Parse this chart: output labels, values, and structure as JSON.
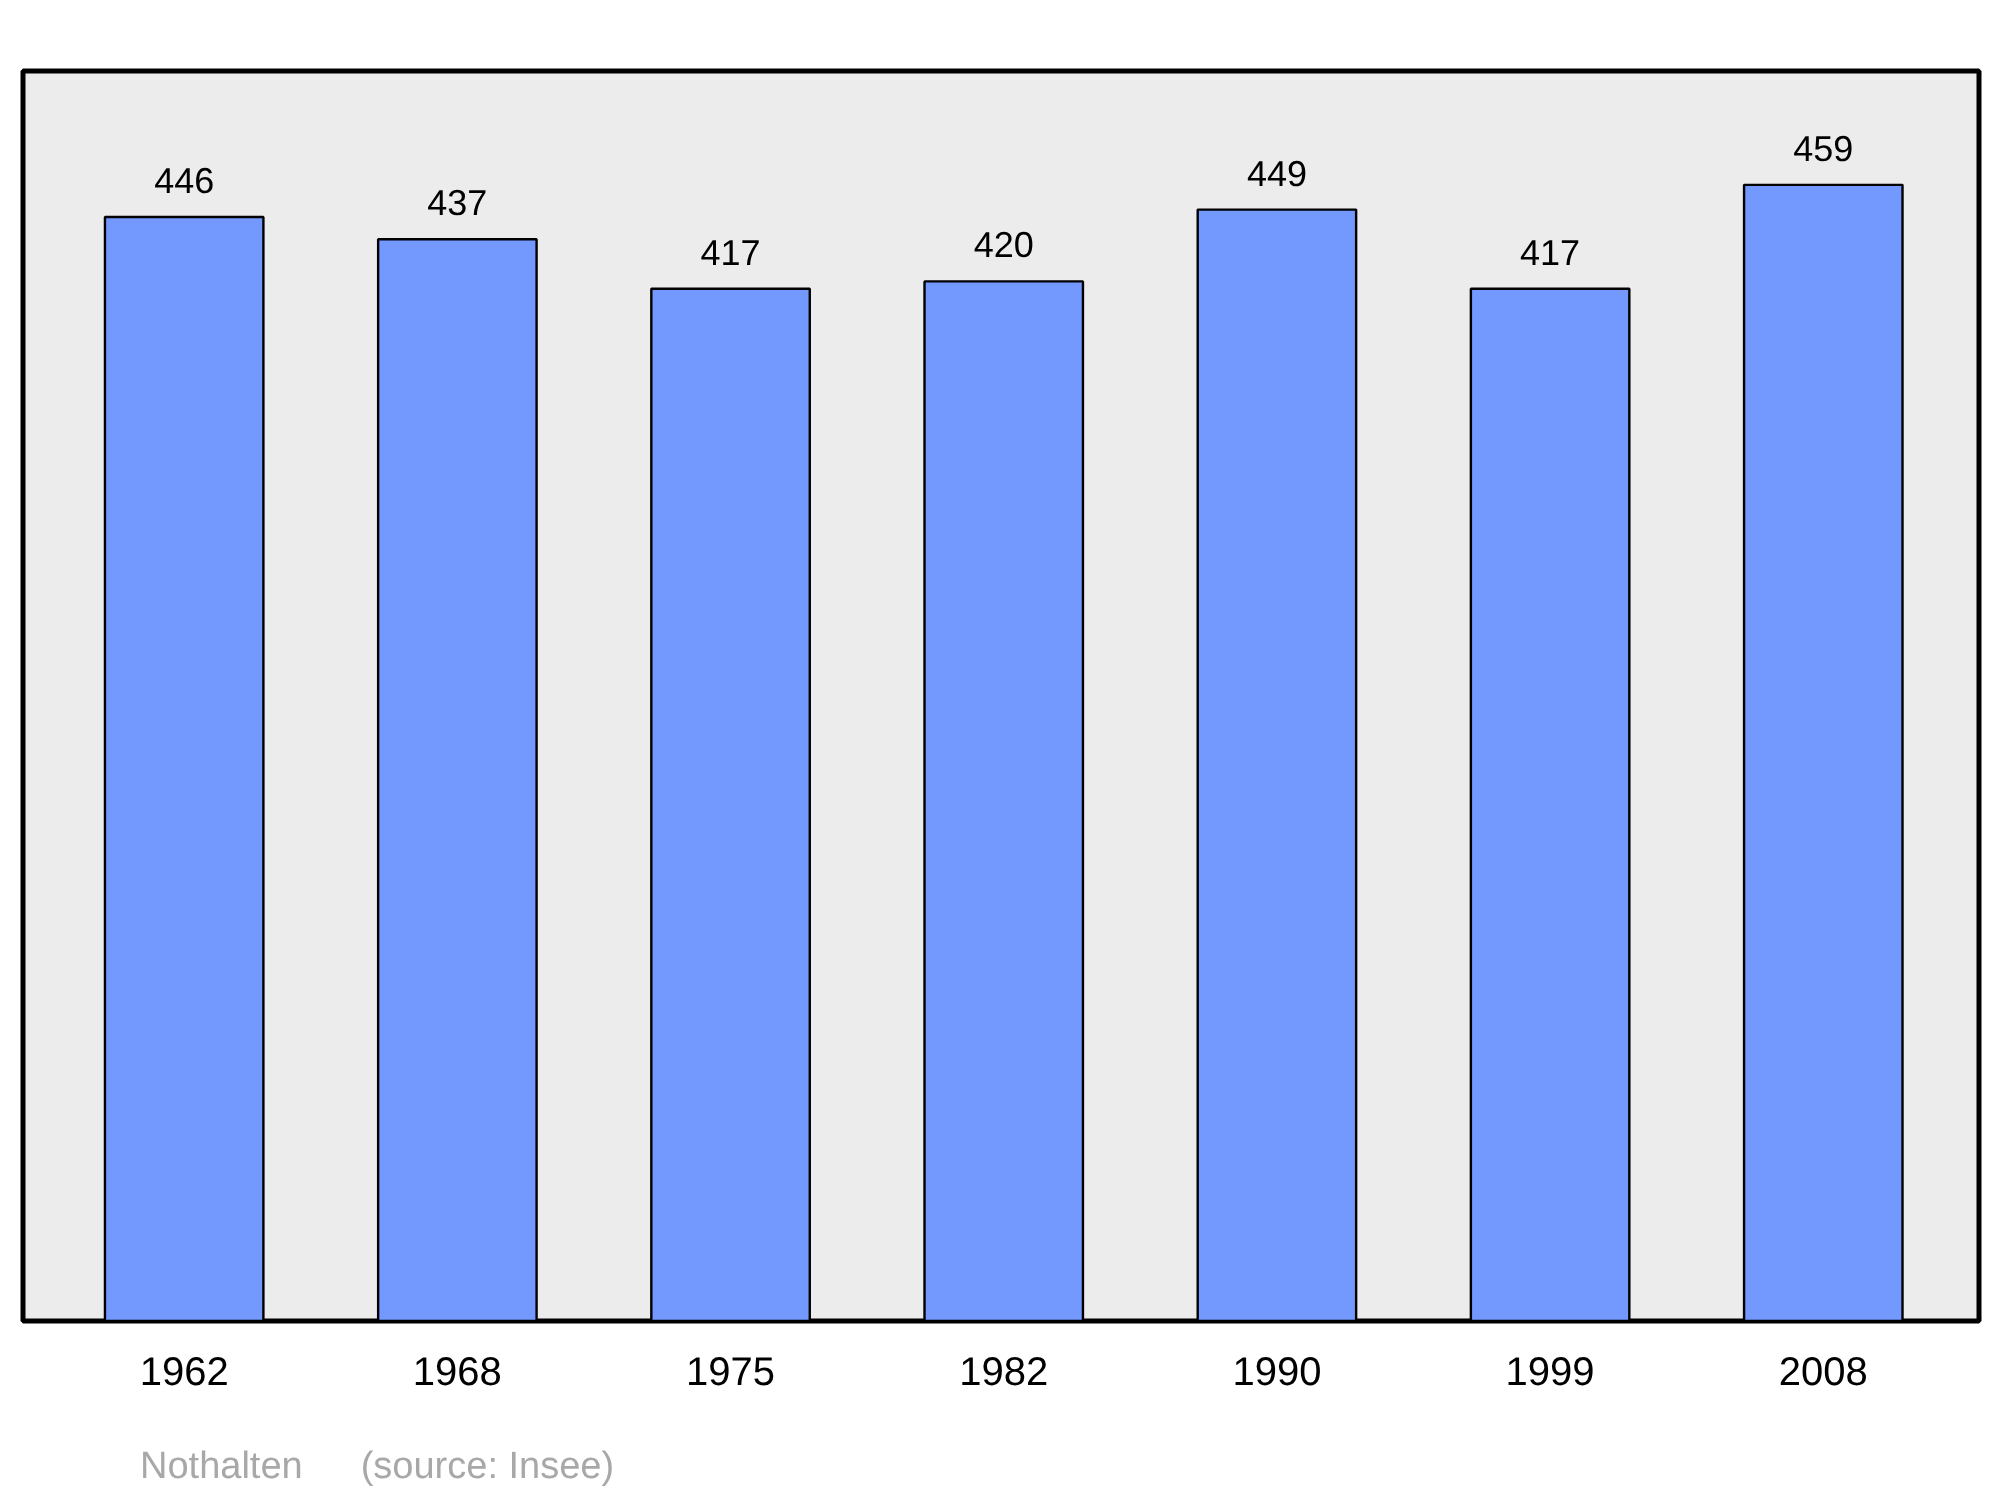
{
  "chart_data": {
    "type": "bar",
    "categories": [
      "1962",
      "1968",
      "1975",
      "1982",
      "1990",
      "1999",
      "2008"
    ],
    "values": [
      446,
      437,
      417,
      420,
      449,
      417,
      459
    ],
    "color": "#7399ff",
    "ylim": [
      0,
      505
    ],
    "tick_labels": "x",
    "data_labels": true,
    "grid": false,
    "annotations": [
      "Nothalten",
      "(source: Insee)"
    ]
  }
}
